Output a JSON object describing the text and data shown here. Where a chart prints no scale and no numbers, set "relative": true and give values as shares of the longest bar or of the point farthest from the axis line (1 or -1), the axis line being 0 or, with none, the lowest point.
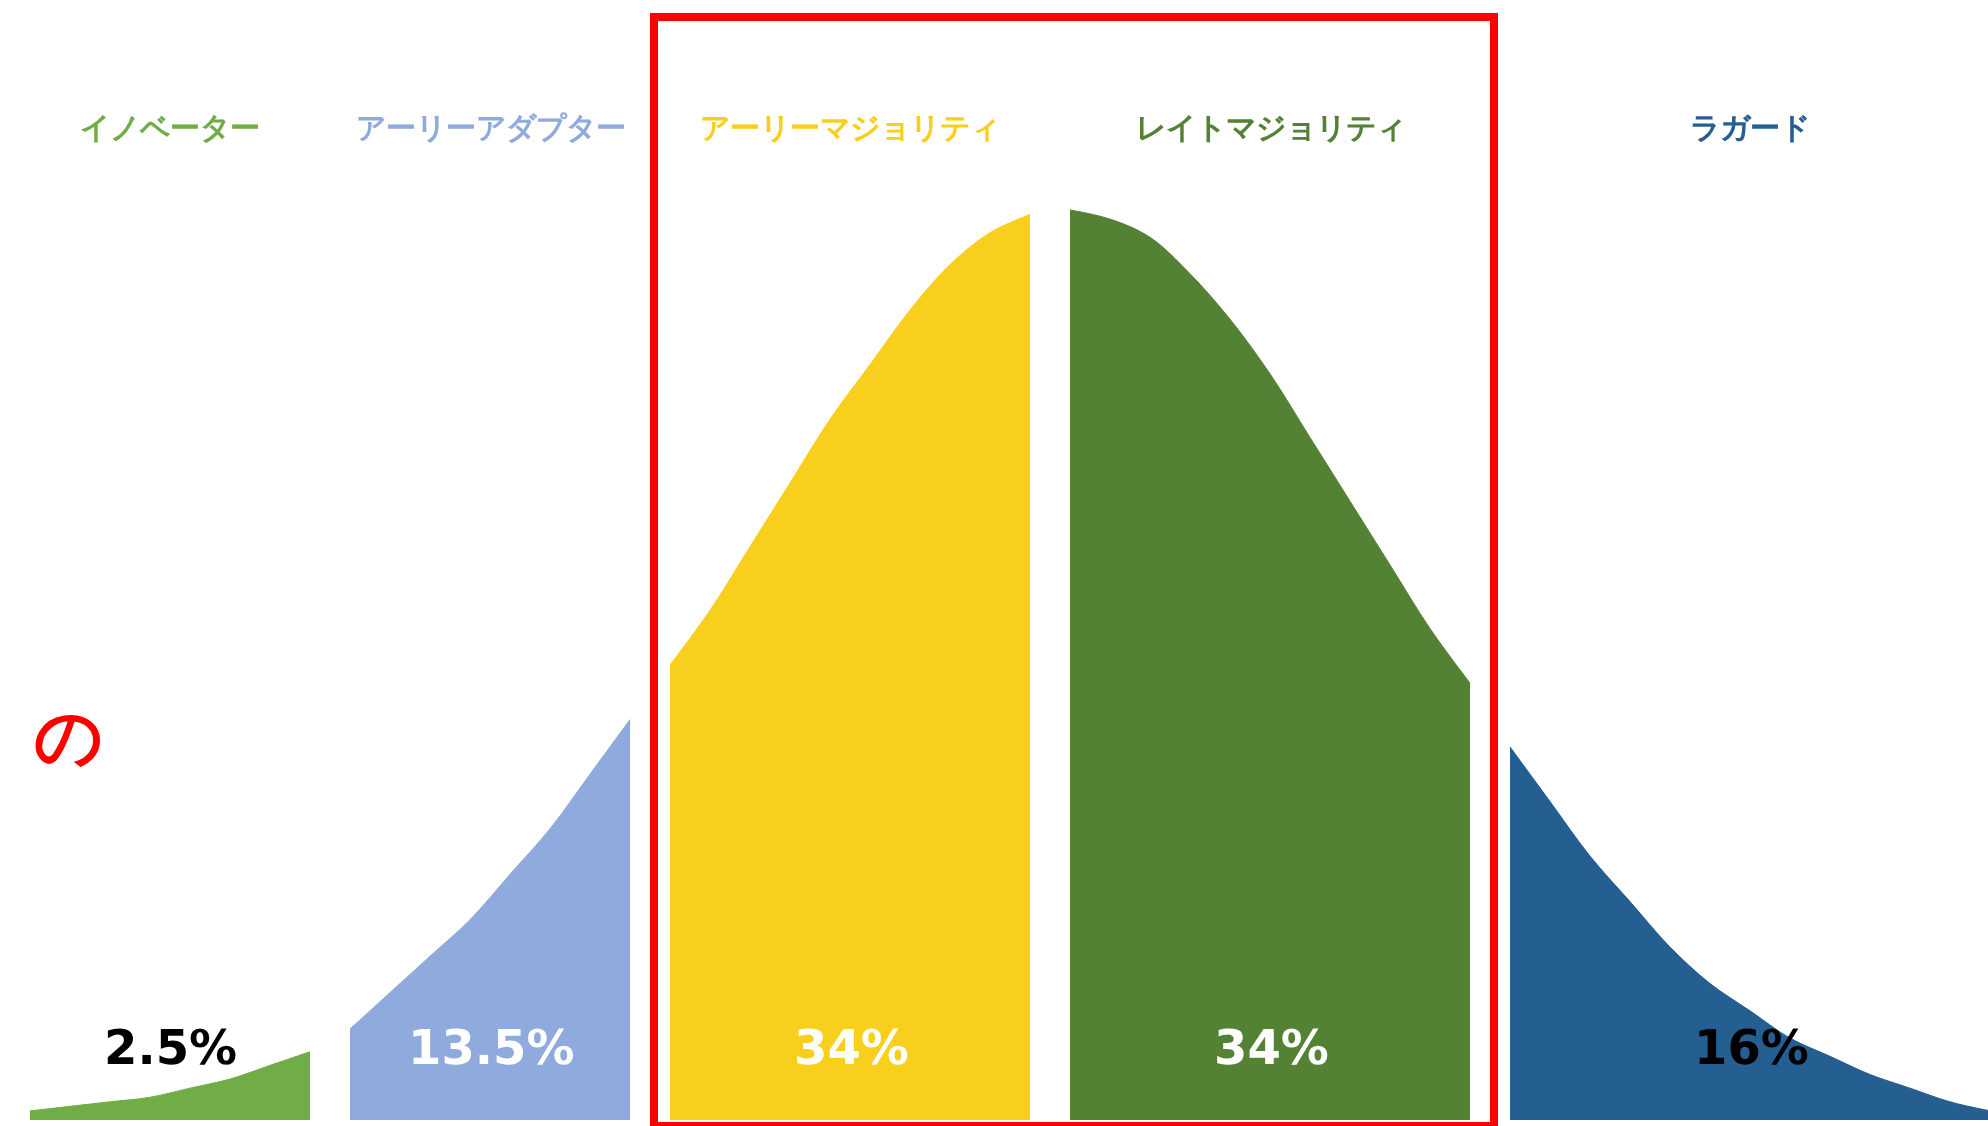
{
  "chart_data": {
    "type": "area",
    "relative": true,
    "categories": [
      null,
      null,
      null,
      null,
      null,
      null,
      null,
      null,
      null,
      null,
      null,
      null,
      null,
      null,
      null,
      null,
      null,
      null,
      null,
      null,
      null,
      null,
      null,
      null,
      null,
      null,
      null,
      null,
      null,
      null,
      null,
      null,
      null,
      null,
      null,
      null,
      null,
      null,
      null,
      null,
      null,
      null,
      null,
      null,
      null,
      null,
      null,
      null,
      null,
      null
    ],
    "series": [
      {
        "name": "イノベーター",
        "color": "#70ad47",
        "values": [
          0.01,
          0.015,
          0.02,
          0.025,
          0.035,
          0.045,
          0.06,
          0.075,
          null,
          null,
          null,
          null,
          null,
          null,
          null,
          null,
          null,
          null,
          null,
          null,
          null,
          null,
          null,
          null,
          null,
          null,
          null,
          null,
          null,
          null,
          null,
          null,
          null,
          null,
          null,
          null,
          null,
          null,
          null,
          null,
          null,
          null,
          null,
          null,
          null,
          null,
          null,
          null,
          null,
          null
        ]
      },
      {
        "name": "アーリーアダプター",
        "color": "#8faadc",
        "values": [
          null,
          null,
          null,
          null,
          null,
          null,
          null,
          null,
          0.1,
          0.14,
          0.18,
          0.22,
          0.27,
          0.32,
          0.38,
          0.44,
          null,
          null,
          null,
          null,
          null,
          null,
          null,
          null,
          null,
          null,
          null,
          null,
          null,
          null,
          null,
          null,
          null,
          null,
          null,
          null,
          null,
          null,
          null,
          null,
          null,
          null,
          null,
          null,
          null,
          null,
          null,
          null,
          null,
          null
        ]
      },
      {
        "name": "アーリーマジョリティ",
        "color": "#f8cf1c",
        "values": [
          null,
          null,
          null,
          null,
          null,
          null,
          null,
          null,
          null,
          null,
          null,
          null,
          null,
          null,
          null,
          null,
          0.5,
          0.56,
          0.63,
          0.7,
          0.77,
          0.83,
          0.89,
          0.94,
          0.975,
          0.995,
          null,
          null,
          null,
          null,
          null,
          null,
          null,
          null,
          null,
          null,
          null,
          null,
          null,
          null,
          null,
          null,
          null,
          null,
          null,
          null,
          null,
          null,
          null,
          null
        ]
      },
      {
        "name": "レイトマジョリティ",
        "color": "#548235",
        "values": [
          null,
          null,
          null,
          null,
          null,
          null,
          null,
          null,
          null,
          null,
          null,
          null,
          null,
          null,
          null,
          null,
          null,
          null,
          null,
          null,
          null,
          null,
          null,
          null,
          null,
          null,
          1.0,
          0.99,
          0.97,
          0.93,
          0.88,
          0.82,
          0.75,
          0.68,
          0.61,
          0.54,
          0.48,
          null,
          null,
          null,
          null,
          null,
          null,
          null,
          null,
          null,
          null,
          null,
          null,
          null
        ]
      },
      {
        "name": "ラガード",
        "color": "#255e91",
        "values": [
          null,
          null,
          null,
          null,
          null,
          null,
          null,
          null,
          null,
          null,
          null,
          null,
          null,
          null,
          null,
          null,
          null,
          null,
          null,
          null,
          null,
          null,
          null,
          null,
          null,
          null,
          null,
          null,
          null,
          null,
          null,
          null,
          null,
          null,
          null,
          null,
          null,
          0.41,
          0.35,
          0.29,
          0.24,
          0.19,
          0.15,
          0.12,
          0.09,
          0.07,
          0.05,
          0.035,
          0.02,
          0.01
        ]
      }
    ],
    "annotations": [
      "2.5%",
      "13.5%",
      "34%",
      "34%",
      "16%",
      "の"
    ],
    "legend": false
  }
}
